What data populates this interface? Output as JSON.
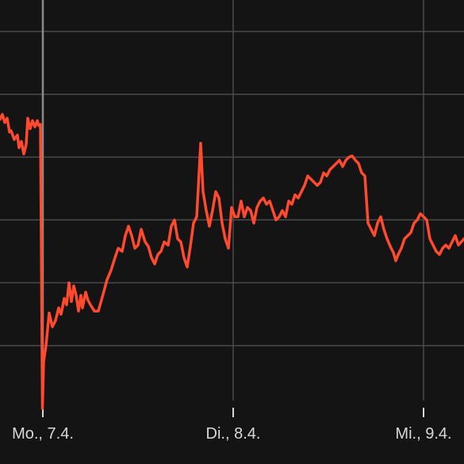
{
  "colors": {
    "background": "#141414",
    "grid": "#4a4a4a",
    "highlight_grid": "#8a8a8a",
    "line": "#ff4a2e",
    "tick_text": "#d8d8d8"
  },
  "chart_data": {
    "type": "line",
    "title": "",
    "xlabel": "",
    "ylabel": "",
    "grid": true,
    "legend": "none",
    "x_ticks": [
      "Mo., 7.4.",
      "Di., 8.4.",
      "Mi., 9.4."
    ],
    "x_tick_values": [
      24,
      48,
      72
    ],
    "xlim": [
      18.6,
      77.1
    ],
    "ylim": [
      0,
      6.5
    ],
    "y_gridlines": [
      1,
      2,
      3,
      4,
      5,
      6
    ],
    "highlight_x": 24,
    "series": [
      {
        "points": [
          [
            18.6,
            4.6
          ],
          [
            18.9,
            4.68
          ],
          [
            19.2,
            4.55
          ],
          [
            19.5,
            4.62
          ],
          [
            19.8,
            4.4
          ],
          [
            20.0,
            4.42
          ],
          [
            20.4,
            4.28
          ],
          [
            20.8,
            4.35
          ],
          [
            21.0,
            4.15
          ],
          [
            21.3,
            4.25
          ],
          [
            21.6,
            4.05
          ],
          [
            21.9,
            4.2
          ],
          [
            22.1,
            4.62
          ],
          [
            22.4,
            4.45
          ],
          [
            22.7,
            4.58
          ],
          [
            23.0,
            4.48
          ],
          [
            23.3,
            4.58
          ],
          [
            23.5,
            4.5
          ],
          [
            23.7,
            4.52
          ],
          [
            23.95,
            0.0
          ],
          [
            24.1,
            0.75
          ],
          [
            24.4,
            1.0
          ],
          [
            24.8,
            1.52
          ],
          [
            25.2,
            1.3
          ],
          [
            25.6,
            1.4
          ],
          [
            26.0,
            1.6
          ],
          [
            26.3,
            1.5
          ],
          [
            26.7,
            1.75
          ],
          [
            27.0,
            1.65
          ],
          [
            27.3,
            2.0
          ],
          [
            27.6,
            1.7
          ],
          [
            27.9,
            1.95
          ],
          [
            28.2,
            1.8
          ],
          [
            28.5,
            1.55
          ],
          [
            28.8,
            1.8
          ],
          [
            29.0,
            1.6
          ],
          [
            29.4,
            1.85
          ],
          [
            29.7,
            1.72
          ],
          [
            30.0,
            1.65
          ],
          [
            30.5,
            1.55
          ],
          [
            31.0,
            1.55
          ],
          [
            31.6,
            1.82
          ],
          [
            32.1,
            2.05
          ],
          [
            32.6,
            2.2
          ],
          [
            33.1,
            2.4
          ],
          [
            33.5,
            2.55
          ],
          [
            34.0,
            2.5
          ],
          [
            34.4,
            2.75
          ],
          [
            34.8,
            2.9
          ],
          [
            35.2,
            2.75
          ],
          [
            35.6,
            2.55
          ],
          [
            36.0,
            2.6
          ],
          [
            36.4,
            2.85
          ],
          [
            36.9,
            2.65
          ],
          [
            37.3,
            2.58
          ],
          [
            37.7,
            2.4
          ],
          [
            38.1,
            2.3
          ],
          [
            38.5,
            2.45
          ],
          [
            38.9,
            2.5
          ],
          [
            39.3,
            2.65
          ],
          [
            39.8,
            2.6
          ],
          [
            40.2,
            2.9
          ],
          [
            40.6,
            3.0
          ],
          [
            41.0,
            2.7
          ],
          [
            41.4,
            2.65
          ],
          [
            41.8,
            2.4
          ],
          [
            42.2,
            2.25
          ],
          [
            42.6,
            2.58
          ],
          [
            43.0,
            2.95
          ],
          [
            43.4,
            3.05
          ],
          [
            43.9,
            4.22
          ],
          [
            44.2,
            3.45
          ],
          [
            44.6,
            3.15
          ],
          [
            45.0,
            2.9
          ],
          [
            45.4,
            3.15
          ],
          [
            45.8,
            3.45
          ],
          [
            46.2,
            3.35
          ],
          [
            46.6,
            2.95
          ],
          [
            47.0,
            2.7
          ],
          [
            47.4,
            2.55
          ],
          [
            47.8,
            3.2
          ],
          [
            48.2,
            3.05
          ],
          [
            48.6,
            3.05
          ],
          [
            49.0,
            3.3
          ],
          [
            49.4,
            3.05
          ],
          [
            49.8,
            3.2
          ],
          [
            50.2,
            3.15
          ],
          [
            50.6,
            2.95
          ],
          [
            51.0,
            3.2
          ],
          [
            51.4,
            3.3
          ],
          [
            51.8,
            3.35
          ],
          [
            52.2,
            3.25
          ],
          [
            52.6,
            3.3
          ],
          [
            53.0,
            3.15
          ],
          [
            53.4,
            3.0
          ],
          [
            53.8,
            3.05
          ],
          [
            54.2,
            3.15
          ],
          [
            54.6,
            3.05
          ],
          [
            55.0,
            3.3
          ],
          [
            55.4,
            3.25
          ],
          [
            55.8,
            3.4
          ],
          [
            56.2,
            3.35
          ],
          [
            56.6,
            3.45
          ],
          [
            57.0,
            3.55
          ],
          [
            57.4,
            3.7
          ],
          [
            57.8,
            3.65
          ],
          [
            58.2,
            3.6
          ],
          [
            58.6,
            3.55
          ],
          [
            59.0,
            3.6
          ],
          [
            59.4,
            3.75
          ],
          [
            59.8,
            3.7
          ],
          [
            60.2,
            3.8
          ],
          [
            60.6,
            3.85
          ],
          [
            61.0,
            3.9
          ],
          [
            61.4,
            3.95
          ],
          [
            61.8,
            3.85
          ],
          [
            62.2,
            3.95
          ],
          [
            62.6,
            4.0
          ],
          [
            63.0,
            4.02
          ],
          [
            63.4,
            3.95
          ],
          [
            63.8,
            3.9
          ],
          [
            64.2,
            3.75
          ],
          [
            64.6,
            3.7
          ],
          [
            65.0,
            2.95
          ],
          [
            65.4,
            2.85
          ],
          [
            65.8,
            2.75
          ],
          [
            66.2,
            2.95
          ],
          [
            66.6,
            3.05
          ],
          [
            67.0,
            2.85
          ],
          [
            67.4,
            2.7
          ],
          [
            67.8,
            2.58
          ],
          [
            68.2,
            2.48
          ],
          [
            68.5,
            2.35
          ],
          [
            68.8,
            2.45
          ],
          [
            69.2,
            2.55
          ],
          [
            69.6,
            2.7
          ],
          [
            70.0,
            2.75
          ],
          [
            70.4,
            2.8
          ],
          [
            70.8,
            2.95
          ],
          [
            71.2,
            3.0
          ],
          [
            71.6,
            3.1
          ],
          [
            72.0,
            3.05
          ],
          [
            72.4,
            3.0
          ],
          [
            72.8,
            2.7
          ],
          [
            73.2,
            2.6
          ],
          [
            73.6,
            2.5
          ],
          [
            74.0,
            2.45
          ],
          [
            74.4,
            2.55
          ],
          [
            74.8,
            2.6
          ],
          [
            75.2,
            2.55
          ],
          [
            75.6,
            2.65
          ],
          [
            76.0,
            2.75
          ],
          [
            76.4,
            2.6
          ],
          [
            77.1,
            2.7
          ]
        ]
      }
    ]
  }
}
